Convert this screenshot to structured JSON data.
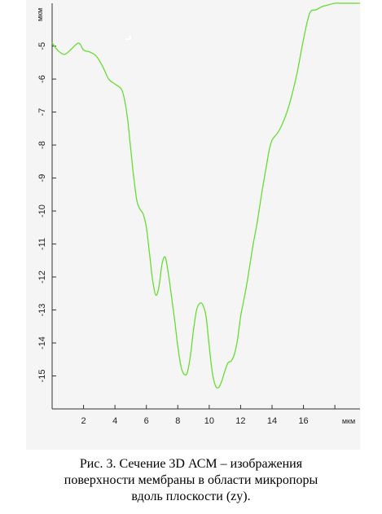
{
  "caption": {
    "line1": "Рис. 3. Сечение 3D АСМ – изображения",
    "line2": "поверхности мембраны в области микропоры",
    "line3": "вдоль плоскости (zy)."
  },
  "chart_data": {
    "type": "line",
    "title": "",
    "xlabel": "мкм",
    "ylabel": "мкм",
    "xlim": [
      0,
      19.6
    ],
    "ylim": [
      -16,
      -3.8
    ],
    "y_inverted": true,
    "grid": false,
    "x_ticks": [
      2,
      4,
      6,
      8,
      10,
      12,
      14,
      16,
      18
    ],
    "x_tick_labels": [
      "2",
      "4",
      "6",
      "8",
      "10",
      "12",
      "14",
      "16",
      ""
    ],
    "y_ticks": [
      -5,
      -6,
      -7,
      -8,
      -9,
      -10,
      -11,
      -12,
      -13,
      -14,
      -15
    ],
    "y_tick_labels": [
      "-5",
      "-6",
      "-7",
      "-8",
      "-9",
      "-10",
      "-11",
      "-12",
      "-13",
      "-14",
      "-15"
    ],
    "line_color": "#66dd33",
    "series": [
      {
        "x": [
          0,
          0.4,
          0.8,
          1.2,
          1.6,
          1.8,
          2.0,
          2.4,
          2.8,
          3.2,
          3.6,
          4.0,
          4.4,
          4.6,
          4.8,
          5.0,
          5.2,
          5.4,
          5.6,
          5.8,
          6.0,
          6.2,
          6.4,
          6.6,
          6.8,
          7.0,
          7.2,
          7.4,
          7.6,
          7.8,
          8.0,
          8.2,
          8.4,
          8.6,
          8.8,
          9.0,
          9.2,
          9.4,
          9.6,
          9.8,
          10.0,
          10.2,
          10.4,
          10.6,
          10.8,
          11.0,
          11.2,
          11.4,
          11.6,
          11.8,
          12.0,
          12.2,
          12.4,
          12.6,
          12.8,
          13.0,
          13.2,
          13.4,
          13.6,
          13.8,
          14.0,
          14.4,
          14.8,
          15.2,
          15.6,
          16.0,
          16.4,
          16.8,
          17.2,
          17.6,
          18.0,
          18.4,
          18.8,
          19.2,
          19.6
        ],
        "y": [
          -4.9,
          -5.15,
          -5.25,
          -5.1,
          -4.92,
          -4.95,
          -5.12,
          -5.18,
          -5.3,
          -5.6,
          -6.0,
          -6.15,
          -6.3,
          -6.6,
          -7.2,
          -8.1,
          -9.0,
          -9.7,
          -9.95,
          -10.1,
          -10.5,
          -11.3,
          -12.1,
          -12.55,
          -12.3,
          -11.6,
          -11.4,
          -11.9,
          -12.6,
          -13.3,
          -14.1,
          -14.7,
          -14.95,
          -14.9,
          -14.4,
          -13.6,
          -13.0,
          -12.8,
          -12.85,
          -13.2,
          -14.1,
          -14.9,
          -15.3,
          -15.35,
          -15.15,
          -14.85,
          -14.6,
          -14.55,
          -14.35,
          -13.9,
          -13.2,
          -12.7,
          -12.2,
          -11.6,
          -11.0,
          -10.5,
          -9.9,
          -9.3,
          -8.75,
          -8.2,
          -7.85,
          -7.6,
          -7.2,
          -6.6,
          -5.8,
          -4.8,
          -4.0,
          -3.9,
          -3.8,
          -3.75,
          -3.7,
          -3.7,
          -3.7,
          -3.7,
          -3.7
        ]
      }
    ]
  }
}
